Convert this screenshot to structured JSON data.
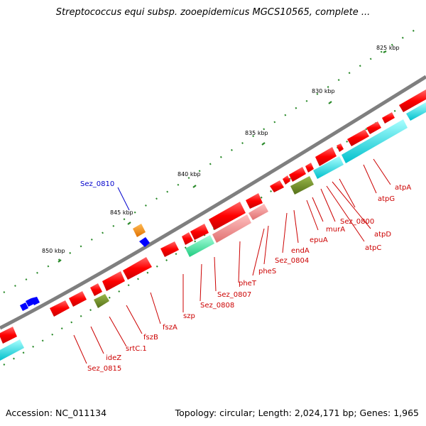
{
  "title": "Streptococcus equi subsp. zooepidemicus MGCS10565, complete ...",
  "footer": {
    "accession": "Accession: NC_011134",
    "summary": "Topology: circular; Length: 2,024,171 bp; Genes: 1,965"
  },
  "colors": {
    "backbone": "#7f7f7f",
    "gene_cds": "#ff0000",
    "gene_pink": "#f08080",
    "gene_green": "#33ee99",
    "gene_olive": "#6b8e23",
    "gene_cyan": "#00d8e0",
    "gene_orange": "#ff8c00",
    "gene_blue": "#0000ff",
    "label_red": "#cc0000",
    "label_blue": "#0000cc",
    "ticks": "#2a8a2a"
  },
  "ruler": [
    "825 kbp",
    "830 kbp",
    "835 kbp",
    "840 kbp",
    "845 kbp",
    "850 kbp"
  ],
  "gene_labels": [
    {
      "text": "atpA",
      "color": "red"
    },
    {
      "text": "atpG",
      "color": "red"
    },
    {
      "text": "Sez_0800",
      "color": "red"
    },
    {
      "text": "atpD",
      "color": "red"
    },
    {
      "text": "atpC",
      "color": "red"
    },
    {
      "text": "murA",
      "color": "red"
    },
    {
      "text": "epuA",
      "color": "red"
    },
    {
      "text": "endA",
      "color": "red"
    },
    {
      "text": "Sez_0804",
      "color": "red"
    },
    {
      "text": "pheS",
      "color": "red"
    },
    {
      "text": "pheT",
      "color": "red"
    },
    {
      "text": "Sez_0807",
      "color": "red"
    },
    {
      "text": "Sez_0808",
      "color": "red"
    },
    {
      "text": "szp",
      "color": "red"
    },
    {
      "text": "fszA",
      "color": "red"
    },
    {
      "text": "fszB",
      "color": "red"
    },
    {
      "text": "srtC.1",
      "color": "red"
    },
    {
      "text": "ideZ",
      "color": "red"
    },
    {
      "text": "Sez_0815",
      "color": "red"
    },
    {
      "text": "Sez_0810",
      "color": "blue"
    }
  ]
}
